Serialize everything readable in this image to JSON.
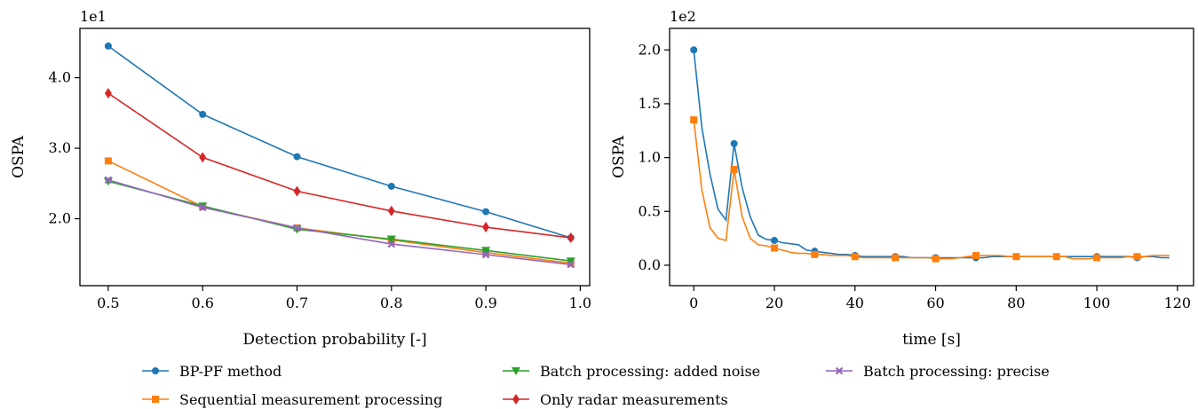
{
  "chart_data": [
    {
      "type": "line",
      "xlabel": "Detection probability [-]",
      "ylabel": "OSPA",
      "y_offset_label": "1e1",
      "xlim": [
        0.47,
        1.01
      ],
      "ylim": [
        1.05,
        4.7
      ],
      "xticks": [
        0.5,
        0.6,
        0.7,
        0.8,
        0.9,
        1.0
      ],
      "xtick_labels": [
        "0.5",
        "0.6",
        "0.7",
        "0.8",
        "0.9",
        "1.0"
      ],
      "yticks": [
        2.0,
        3.0,
        4.0
      ],
      "ytick_labels": [
        "2.0",
        "3.0",
        "4.0"
      ],
      "grid": false,
      "series": [
        {
          "name": "BP-PF method",
          "color": "#1f77b4",
          "marker": "circle",
          "x": [
            0.5,
            0.6,
            0.7,
            0.8,
            0.9,
            0.99
          ],
          "y": [
            4.45,
            3.48,
            2.88,
            2.46,
            2.1,
            1.73
          ]
        },
        {
          "name": "Sequential measurement processing",
          "color": "#ff7f0e",
          "marker": "square",
          "x": [
            0.5,
            0.6,
            0.7,
            0.8,
            0.9,
            0.99
          ],
          "y": [
            2.82,
            2.17,
            1.87,
            1.7,
            1.52,
            1.37
          ]
        },
        {
          "name": "Batch processing: added noise",
          "color": "#2ca02c",
          "marker": "triangle-down",
          "x": [
            0.5,
            0.6,
            0.7,
            0.8,
            0.9,
            0.99
          ],
          "y": [
            2.53,
            2.18,
            1.85,
            1.71,
            1.55,
            1.4
          ]
        },
        {
          "name": "Only radar measurements",
          "color": "#d62728",
          "marker": "diamond",
          "x": [
            0.5,
            0.6,
            0.7,
            0.8,
            0.9,
            0.99
          ],
          "y": [
            3.78,
            2.87,
            2.39,
            2.11,
            1.88,
            1.73
          ]
        },
        {
          "name": "Batch processing: precise",
          "color": "#9467bd",
          "marker": "x",
          "x": [
            0.5,
            0.6,
            0.7,
            0.8,
            0.9,
            0.99
          ],
          "y": [
            2.55,
            2.16,
            1.87,
            1.64,
            1.49,
            1.35
          ]
        }
      ]
    },
    {
      "type": "line",
      "xlabel": "time [s]",
      "ylabel": "OSPA",
      "y_offset_label": "1e2",
      "xlim": [
        -6,
        124
      ],
      "ylim": [
        -0.19,
        2.2
      ],
      "xticks": [
        0,
        20,
        40,
        60,
        80,
        100,
        120
      ],
      "xtick_labels": [
        "0",
        "20",
        "40",
        "60",
        "80",
        "100",
        "120"
      ],
      "yticks": [
        0.0,
        0.5,
        1.0,
        1.5,
        2.0
      ],
      "ytick_labels": [
        "0.0",
        "0.5",
        "1.0",
        "1.5",
        "2.0"
      ],
      "grid": false,
      "series": [
        {
          "name": "BP-PF method",
          "color": "#1f77b4",
          "marker": "circle",
          "x": [
            0,
            2,
            4,
            6,
            8,
            10,
            12,
            14,
            16,
            18,
            20,
            22,
            24,
            26,
            28,
            30,
            32,
            34,
            36,
            38,
            40,
            42,
            44,
            46,
            48,
            50,
            52,
            54,
            56,
            58,
            60,
            62,
            64,
            66,
            68,
            70,
            72,
            74,
            76,
            78,
            80,
            82,
            84,
            86,
            88,
            90,
            92,
            94,
            96,
            98,
            100,
            102,
            104,
            106,
            108,
            110,
            112,
            114,
            116,
            118
          ],
          "y": [
            2.0,
            1.28,
            0.85,
            0.52,
            0.42,
            1.13,
            0.72,
            0.45,
            0.28,
            0.24,
            0.23,
            0.21,
            0.2,
            0.19,
            0.14,
            0.13,
            0.12,
            0.11,
            0.1,
            0.1,
            0.09,
            0.08,
            0.08,
            0.08,
            0.08,
            0.08,
            0.08,
            0.07,
            0.07,
            0.07,
            0.07,
            0.07,
            0.07,
            0.07,
            0.07,
            0.07,
            0.07,
            0.08,
            0.08,
            0.08,
            0.08,
            0.08,
            0.08,
            0.08,
            0.08,
            0.08,
            0.08,
            0.08,
            0.08,
            0.08,
            0.08,
            0.08,
            0.08,
            0.08,
            0.08,
            0.07,
            0.08,
            0.08,
            0.07,
            0.07
          ],
          "marker_indices": [
            0,
            5,
            10,
            15,
            20,
            25,
            30,
            35,
            40,
            45,
            50,
            55
          ]
        },
        {
          "name": "Sequential measurement processing",
          "color": "#ff7f0e",
          "marker": "square",
          "x": [
            0,
            2,
            4,
            6,
            8,
            10,
            12,
            14,
            16,
            18,
            20,
            22,
            24,
            26,
            28,
            30,
            32,
            34,
            36,
            38,
            40,
            42,
            44,
            46,
            48,
            50,
            52,
            54,
            56,
            58,
            60,
            62,
            64,
            66,
            68,
            70,
            72,
            74,
            76,
            78,
            80,
            82,
            84,
            86,
            88,
            90,
            92,
            94,
            96,
            98,
            100,
            102,
            104,
            106,
            108,
            110,
            112,
            114,
            116,
            118
          ],
          "y": [
            1.35,
            0.7,
            0.35,
            0.25,
            0.23,
            0.89,
            0.45,
            0.25,
            0.19,
            0.18,
            0.16,
            0.14,
            0.12,
            0.11,
            0.11,
            0.1,
            0.1,
            0.09,
            0.09,
            0.09,
            0.08,
            0.07,
            0.07,
            0.07,
            0.07,
            0.07,
            0.07,
            0.07,
            0.07,
            0.07,
            0.06,
            0.06,
            0.06,
            0.07,
            0.08,
            0.09,
            0.09,
            0.09,
            0.09,
            0.08,
            0.08,
            0.08,
            0.08,
            0.08,
            0.08,
            0.08,
            0.08,
            0.06,
            0.06,
            0.06,
            0.07,
            0.07,
            0.07,
            0.07,
            0.08,
            0.08,
            0.08,
            0.09,
            0.09,
            0.09
          ],
          "marker_indices": [
            0,
            5,
            10,
            15,
            20,
            25,
            30,
            35,
            40,
            45,
            50,
            55
          ]
        }
      ]
    }
  ],
  "legend": {
    "placement": "bottom",
    "items": [
      {
        "label": "BP-PF method",
        "color": "#1f77b4",
        "marker": "circle"
      },
      {
        "label": "Sequential measurement processing",
        "color": "#ff7f0e",
        "marker": "square"
      },
      {
        "label": "Batch processing: added noise",
        "color": "#2ca02c",
        "marker": "triangle-down"
      },
      {
        "label": "Only radar measurements",
        "color": "#d62728",
        "marker": "diamond"
      },
      {
        "label": "Batch processing: precise",
        "color": "#9467bd",
        "marker": "x"
      }
    ]
  }
}
